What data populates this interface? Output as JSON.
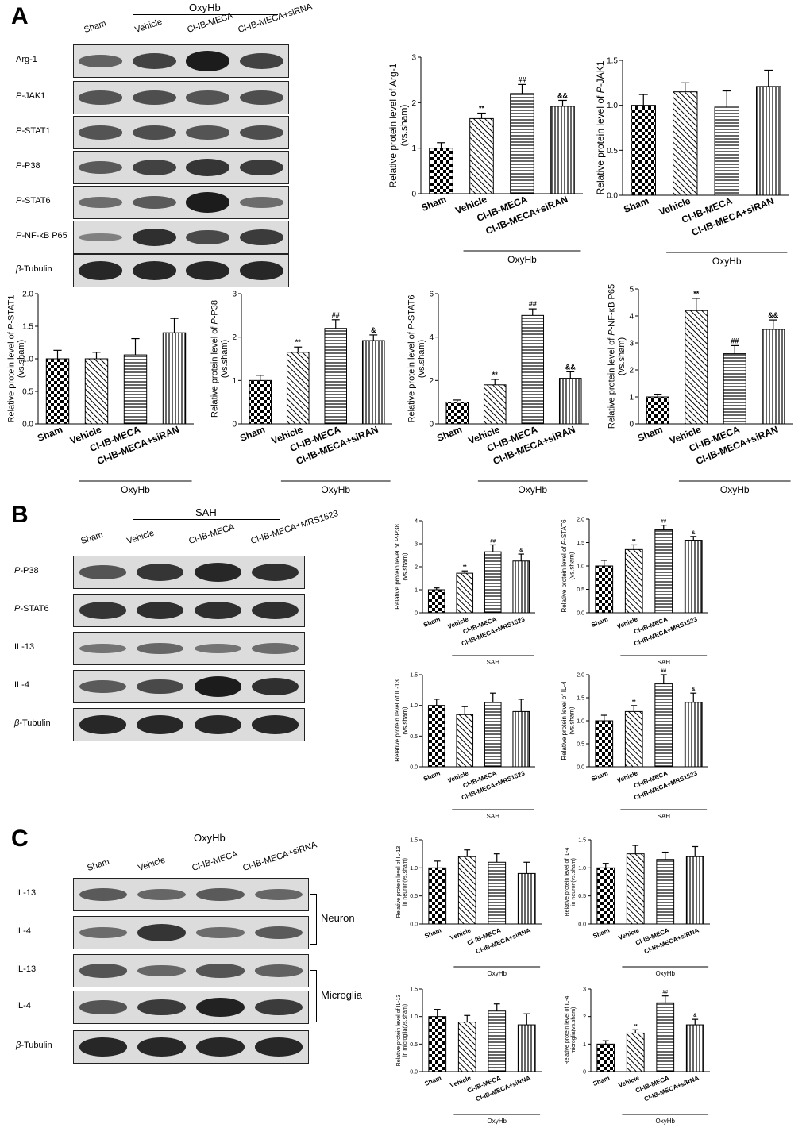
{
  "panels": {
    "A": {
      "letter": "A",
      "header": "OxyHb",
      "lanes": [
        "Sham",
        "Vehicle",
        "Cl-IB-MECA",
        "Cl-IB-MECA+siRNA"
      ],
      "blots": [
        {
          "label": "Arg-1",
          "intensity": [
            0.45,
            0.7,
            1.0,
            0.7
          ]
        },
        {
          "label": "P-JAK1",
          "intensity": [
            0.55,
            0.6,
            0.55,
            0.6
          ]
        },
        {
          "label": "P-STAT1",
          "intensity": [
            0.55,
            0.6,
            0.55,
            0.6
          ]
        },
        {
          "label": "P-P38",
          "intensity": [
            0.5,
            0.7,
            0.8,
            0.75
          ]
        },
        {
          "label": "P-STAT6",
          "intensity": [
            0.35,
            0.5,
            1.0,
            0.35
          ]
        },
        {
          "label": "P-NF-κB P65",
          "intensity": [
            0.2,
            0.85,
            0.65,
            0.75
          ]
        },
        {
          "label": "β-Tubulin",
          "intensity": [
            0.9,
            0.9,
            0.9,
            0.9
          ]
        }
      ]
    },
    "B": {
      "letter": "B",
      "header": "SAH",
      "lanes": [
        "Sham",
        "Vehicle",
        "Cl-IB-MECA",
        "Cl-IB-MECA+MRS1523"
      ],
      "blots": [
        {
          "label": "P-P38",
          "intensity": [
            0.55,
            0.8,
            0.9,
            0.85
          ]
        },
        {
          "label": "P-STAT6",
          "intensity": [
            0.8,
            0.85,
            0.85,
            0.85
          ]
        },
        {
          "label": "IL-13",
          "intensity": [
            0.3,
            0.4,
            0.3,
            0.35
          ]
        },
        {
          "label": "IL-4",
          "intensity": [
            0.5,
            0.65,
            1.0,
            0.85
          ]
        },
        {
          "label": "β-Tubulin",
          "intensity": [
            0.9,
            0.9,
            0.9,
            0.9
          ]
        }
      ]
    },
    "C": {
      "letter": "C",
      "header": "OxyHb",
      "lanes": [
        "Sham",
        "Vehicle",
        "Cl-IB-MECA",
        "Cl-IB-MECA+siRNA"
      ],
      "blots": [
        {
          "label": "IL-13",
          "intensity": [
            0.5,
            0.4,
            0.5,
            0.4
          ]
        },
        {
          "label": "IL-4",
          "intensity": [
            0.35,
            0.8,
            0.35,
            0.5
          ]
        },
        {
          "label": "IL-13",
          "intensity": [
            0.55,
            0.4,
            0.55,
            0.45
          ]
        },
        {
          "label": "IL-4",
          "intensity": [
            0.55,
            0.75,
            0.95,
            0.75
          ]
        },
        {
          "label": "β-Tubulin",
          "intensity": [
            0.9,
            0.9,
            0.9,
            0.9
          ]
        }
      ],
      "groups": [
        "Neuron",
        "Microglia"
      ]
    }
  },
  "chart_data": [
    {
      "id": "A-arg1",
      "type": "bar",
      "categories": [
        "Sham",
        "Vehicle",
        "Cl-IB-MECA",
        "Cl-IB-MECA+siRAN"
      ],
      "values": [
        1.0,
        1.65,
        2.2,
        1.92
      ],
      "errors": [
        0.12,
        0.12,
        0.2,
        0.13
      ],
      "sig": [
        "",
        "**",
        "##",
        "&&"
      ],
      "ylabel": "Relative protein level of Arg-1",
      "ylabel2": "(vs.sham)",
      "ylim": [
        0,
        3
      ],
      "yticks": [
        0,
        1,
        2,
        3
      ],
      "group_label": "OxyHb"
    },
    {
      "id": "A-jak1",
      "type": "bar",
      "categories": [
        "Sham",
        "Vehicle",
        "Cl-IB-MECA",
        "Cl-IB-MECA+siRAN"
      ],
      "values": [
        1.0,
        1.15,
        0.98,
        1.21
      ],
      "errors": [
        0.12,
        0.1,
        0.18,
        0.18
      ],
      "sig": [
        "",
        "",
        "",
        ""
      ],
      "ylabel": "Relative protein level of P-JAK1",
      "ylabel2": "",
      "ylim": [
        0,
        1.5
      ],
      "yticks": [
        0,
        0.5,
        1.0,
        1.5
      ],
      "group_label": "OxyHb"
    },
    {
      "id": "A-stat1",
      "type": "bar",
      "categories": [
        "Sham",
        "Vehicle",
        "Cl-IB-MECA",
        "Cl-IB-MECA+siRAN"
      ],
      "values": [
        1.0,
        1.0,
        1.06,
        1.4
      ],
      "errors": [
        0.13,
        0.1,
        0.25,
        0.22
      ],
      "sig": [
        "",
        "",
        "",
        ""
      ],
      "ylabel": "Relative protein level of P-STAT1",
      "ylabel2": "(vs.sham)",
      "ylim": [
        0,
        2.0
      ],
      "yticks": [
        0,
        0.5,
        1.0,
        1.5,
        2.0
      ],
      "group_label": "OxyHb"
    },
    {
      "id": "A-p38",
      "type": "bar",
      "categories": [
        "Sham",
        "Vehicle",
        "Cl-IB-MECA",
        "Cl-IB-MECA+siRAN"
      ],
      "values": [
        1.0,
        1.65,
        2.2,
        1.92
      ],
      "errors": [
        0.12,
        0.12,
        0.2,
        0.13
      ],
      "sig": [
        "",
        "**",
        "##",
        "&"
      ],
      "ylabel": "Relative protein level of P-P38",
      "ylabel2": "(vs.sham)",
      "ylim": [
        0,
        3
      ],
      "yticks": [
        0,
        1,
        2,
        3
      ],
      "group_label": "OxyHb"
    },
    {
      "id": "A-stat6",
      "type": "bar",
      "categories": [
        "Sham",
        "Vehicle",
        "Cl-IB-MECA",
        "Cl-IB-MECA+siRAN"
      ],
      "values": [
        1.0,
        1.8,
        5.0,
        2.1
      ],
      "errors": [
        0.1,
        0.25,
        0.3,
        0.3
      ],
      "sig": [
        "",
        "**",
        "##",
        "&&"
      ],
      "ylabel": "Relative protein level of P-STAT6",
      "ylabel2": "(vs.sham)",
      "ylim": [
        0,
        6
      ],
      "yticks": [
        0,
        2,
        4,
        6
      ],
      "group_label": "OxyHb"
    },
    {
      "id": "A-nfkb",
      "type": "bar",
      "categories": [
        "Sham",
        "Vehicle",
        "Cl-IB-MECA",
        "Cl-IB-MECA+siRAN"
      ],
      "values": [
        1.0,
        4.2,
        2.6,
        3.5
      ],
      "errors": [
        0.1,
        0.45,
        0.3,
        0.35
      ],
      "sig": [
        "",
        "**",
        "##",
        "&&"
      ],
      "ylabel": "Relative protein level of P-NF-κB P65",
      "ylabel2": "(vs.sham)",
      "ylim": [
        0,
        5
      ],
      "yticks": [
        0,
        1,
        2,
        3,
        4,
        5
      ],
      "group_label": "OxyHb"
    },
    {
      "id": "B-p38",
      "type": "bar",
      "categories": [
        "Sham",
        "Vehicle",
        "Cl-IB-MECA",
        "Cl-IB-MECA+MRS1523"
      ],
      "values": [
        1.0,
        1.72,
        2.65,
        2.25
      ],
      "errors": [
        0.08,
        0.1,
        0.3,
        0.3
      ],
      "sig": [
        "",
        "**",
        "##",
        "&"
      ],
      "ylabel": "Relative protein level of P-P38",
      "ylabel2": "(vs.sham)",
      "ylim": [
        0,
        4
      ],
      "yticks": [
        0,
        1,
        2,
        3,
        4
      ],
      "group_label": "SAH"
    },
    {
      "id": "B-stat6",
      "type": "bar",
      "categories": [
        "Sham",
        "Vehicle",
        "Cl-IB-MECA",
        "Cl-IB-MECA+MRS1523"
      ],
      "values": [
        1.0,
        1.35,
        1.77,
        1.55
      ],
      "errors": [
        0.12,
        0.1,
        0.1,
        0.08
      ],
      "sig": [
        "",
        "**",
        "##",
        "&"
      ],
      "ylabel": "Relative protein level of P-STAT6",
      "ylabel2": "(vs.sham)",
      "ylim": [
        0,
        2.0
      ],
      "yticks": [
        0,
        0.5,
        1.0,
        1.5,
        2.0
      ],
      "group_label": "SAH"
    },
    {
      "id": "B-il13",
      "type": "bar",
      "categories": [
        "Sham",
        "Vehicle",
        "Cl-IB-MECA",
        "Cl-IB-MECA+MRS1523"
      ],
      "values": [
        1.0,
        0.85,
        1.05,
        0.9
      ],
      "errors": [
        0.1,
        0.13,
        0.15,
        0.2
      ],
      "sig": [
        "",
        "",
        "",
        ""
      ],
      "ylabel": "Relative protein level of IL-13",
      "ylabel2": "(vs.sham)",
      "ylim": [
        0,
        1.5
      ],
      "yticks": [
        0,
        0.5,
        1.0,
        1.5
      ],
      "group_label": "SAH"
    },
    {
      "id": "B-il4",
      "type": "bar",
      "categories": [
        "Sham",
        "Vehicle",
        "Cl-IB-MECA",
        "Cl-IB-MECA+MRS1523"
      ],
      "values": [
        1.0,
        1.2,
        1.8,
        1.4
      ],
      "errors": [
        0.12,
        0.13,
        0.2,
        0.2
      ],
      "sig": [
        "",
        "**",
        "##",
        "&"
      ],
      "ylabel": "Relative protein level of IL-4",
      "ylabel2": "(vs.sham)",
      "ylim": [
        0,
        2.0
      ],
      "yticks": [
        0,
        0.5,
        1.0,
        1.5,
        2.0
      ],
      "group_label": "SAH"
    },
    {
      "id": "C-il13-neuron",
      "type": "bar",
      "categories": [
        "Sham",
        "Vehicle",
        "Cl-IB-MECA",
        "Cl-IB-MECA+siRNA"
      ],
      "values": [
        1.0,
        1.2,
        1.1,
        0.9
      ],
      "errors": [
        0.12,
        0.12,
        0.15,
        0.2
      ],
      "sig": [
        "",
        "",
        "",
        ""
      ],
      "ylabel": "Relative protein level of IL-13",
      "ylabel2": "in neuron(vs.sham)",
      "ylim": [
        0,
        1.5
      ],
      "yticks": [
        0,
        0.5,
        1.0,
        1.5
      ],
      "group_label": "OxyHb"
    },
    {
      "id": "C-il4-neuron",
      "type": "bar",
      "categories": [
        "Sham",
        "Vehicle",
        "Cl-IB-MECA",
        "Cl-IB-MECA+siRNA"
      ],
      "values": [
        1.0,
        1.25,
        1.15,
        1.2
      ],
      "errors": [
        0.08,
        0.15,
        0.13,
        0.18
      ],
      "sig": [
        "",
        "",
        "",
        ""
      ],
      "ylabel": "Relative protein level of IL-4",
      "ylabel2": "in neuron(vs.sham)",
      "ylim": [
        0,
        1.5
      ],
      "yticks": [
        0,
        0.5,
        1.0,
        1.5
      ],
      "group_label": "OxyHb"
    },
    {
      "id": "C-il13-microglia",
      "type": "bar",
      "categories": [
        "Sham",
        "Vehicle",
        "Cl-IB-MECA",
        "Cl-IB-MECA+siRNA"
      ],
      "values": [
        1.0,
        0.9,
        1.1,
        0.85
      ],
      "errors": [
        0.13,
        0.12,
        0.13,
        0.2
      ],
      "sig": [
        "",
        "",
        "",
        ""
      ],
      "ylabel": "Relative protein level of IL-13",
      "ylabel2": "in microglia(vs.sham)",
      "ylim": [
        0,
        1.5
      ],
      "yticks": [
        0,
        0.5,
        1.0,
        1.5
      ],
      "group_label": "OxyHb"
    },
    {
      "id": "C-il4-microglia",
      "type": "bar",
      "categories": [
        "Sham",
        "Vehicle",
        "Cl-IB-MECA",
        "Cl-IB-MECA+siRNA"
      ],
      "values": [
        1.0,
        1.4,
        2.5,
        1.7
      ],
      "errors": [
        0.12,
        0.12,
        0.25,
        0.2
      ],
      "sig": [
        "",
        "**",
        "##",
        "&"
      ],
      "ylabel": "Relative protein level of IL-4",
      "ylabel2": "microglia(vs.sham)",
      "ylim": [
        0,
        3
      ],
      "yticks": [
        0,
        1,
        2,
        3
      ],
      "group_label": "OxyHb"
    }
  ]
}
